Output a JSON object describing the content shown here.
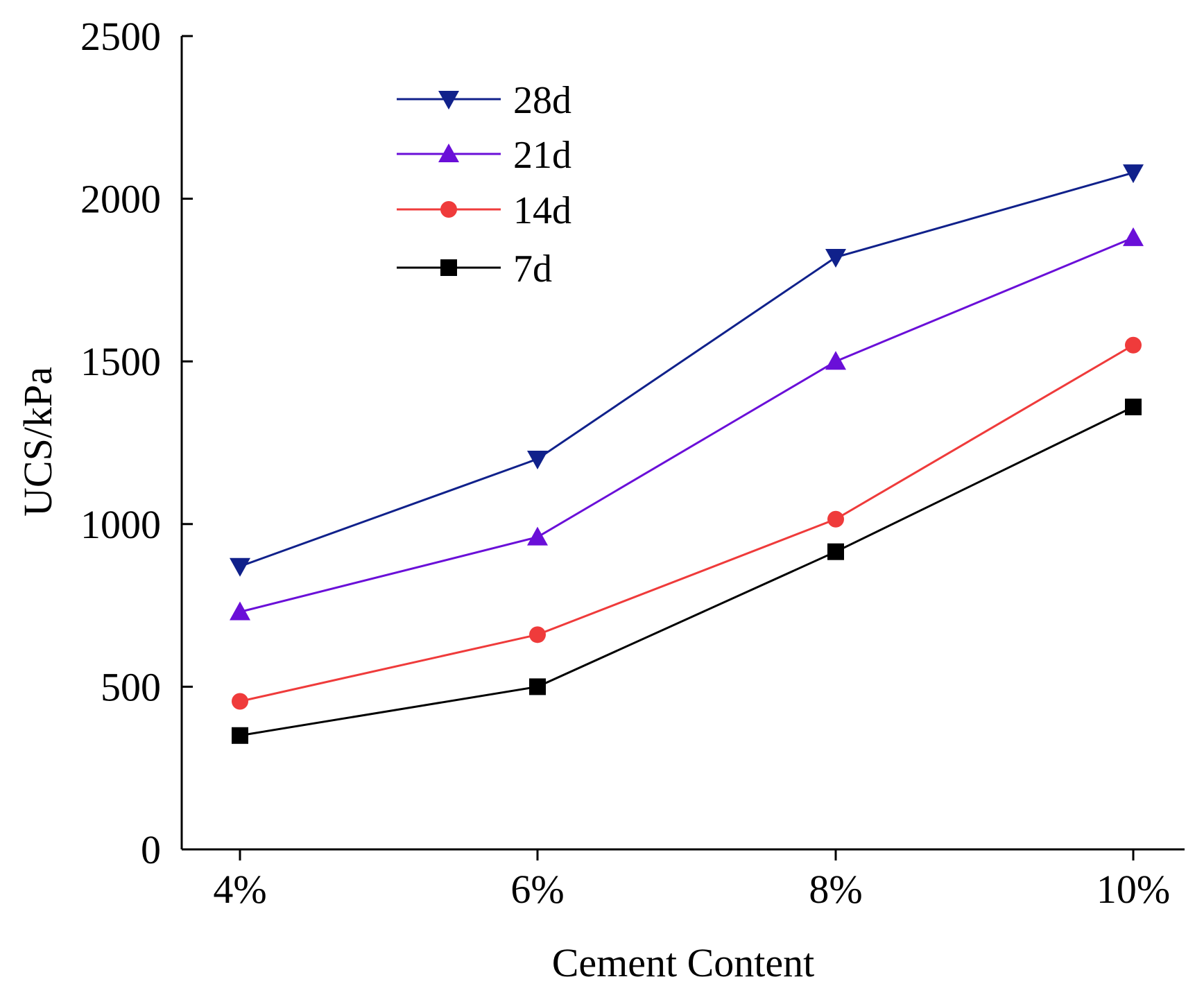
{
  "chart_data": {
    "type": "line",
    "title": "",
    "xlabel": "Cement Content",
    "ylabel": "UCS/kPa",
    "categories": [
      "4%",
      "6%",
      "8%",
      "10%"
    ],
    "ylim": [
      0,
      2500
    ],
    "yticks": [
      0,
      500,
      1000,
      1500,
      2000,
      2500
    ],
    "grid": false,
    "legend_position": "top-left",
    "series": [
      {
        "name": "28d",
        "color": "#10218b",
        "marker": "triangle-down",
        "values": [
          870,
          1200,
          1820,
          2080
        ]
      },
      {
        "name": "21d",
        "color": "#6a0fd8",
        "marker": "triangle-up",
        "values": [
          730,
          960,
          1500,
          1880
        ]
      },
      {
        "name": "14d",
        "color": "#ef3b3b",
        "marker": "circle",
        "values": [
          455,
          660,
          1015,
          1550
        ]
      },
      {
        "name": "7d",
        "color": "#000000",
        "marker": "square",
        "values": [
          350,
          500,
          915,
          1360
        ]
      }
    ]
  }
}
